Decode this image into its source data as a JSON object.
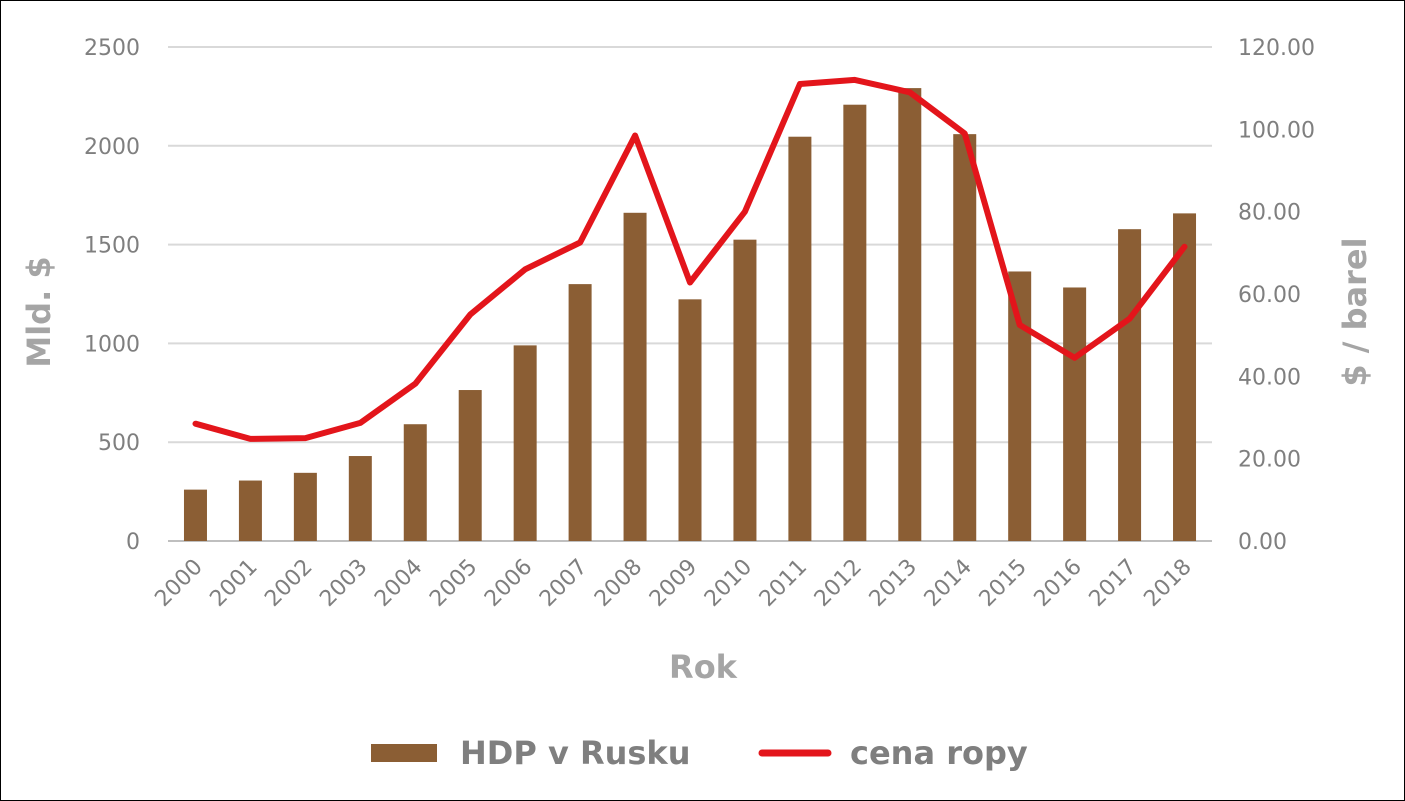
{
  "chart_data": {
    "type": "bar",
    "title": "",
    "categories": [
      "2000",
      "2001",
      "2002",
      "2003",
      "2004",
      "2005",
      "2006",
      "2007",
      "2008",
      "2009",
      "2010",
      "2011",
      "2012",
      "2013",
      "2014",
      "2015",
      "2016",
      "2017",
      "2018"
    ],
    "series": [
      {
        "name": "HDP v Rusku",
        "type": "bar",
        "axis": "left",
        "color": "#8b5e34",
        "values": [
          260,
          306,
          345,
          430,
          591,
          764,
          990,
          1300,
          1661,
          1223,
          1525,
          2046,
          2208,
          2292,
          2059,
          1364,
          1283,
          1578,
          1658
        ]
      },
      {
        "name": "cena ropy",
        "type": "line",
        "axis": "right",
        "color": "#e3151b",
        "values": [
          28.5,
          24.8,
          25.0,
          28.7,
          38.2,
          55.0,
          66.0,
          72.5,
          98.5,
          62.8,
          80.0,
          111.0,
          112.0,
          109.0,
          99.0,
          52.5,
          44.5,
          54.0,
          71.5
        ]
      }
    ],
    "xlabel": "Rok",
    "ylabel": "Mld. $",
    "y2label": "$ / barel",
    "ylim": [
      0,
      2500
    ],
    "y2lim": [
      0,
      120
    ],
    "yticks": [
      "0",
      "500",
      "1000",
      "1500",
      "2000",
      "2500"
    ],
    "y2ticks": [
      "0.00",
      "20.00",
      "40.00",
      "60.00",
      "80.00",
      "100.00",
      "120.00"
    ],
    "grid": true,
    "legend": "bottom"
  }
}
